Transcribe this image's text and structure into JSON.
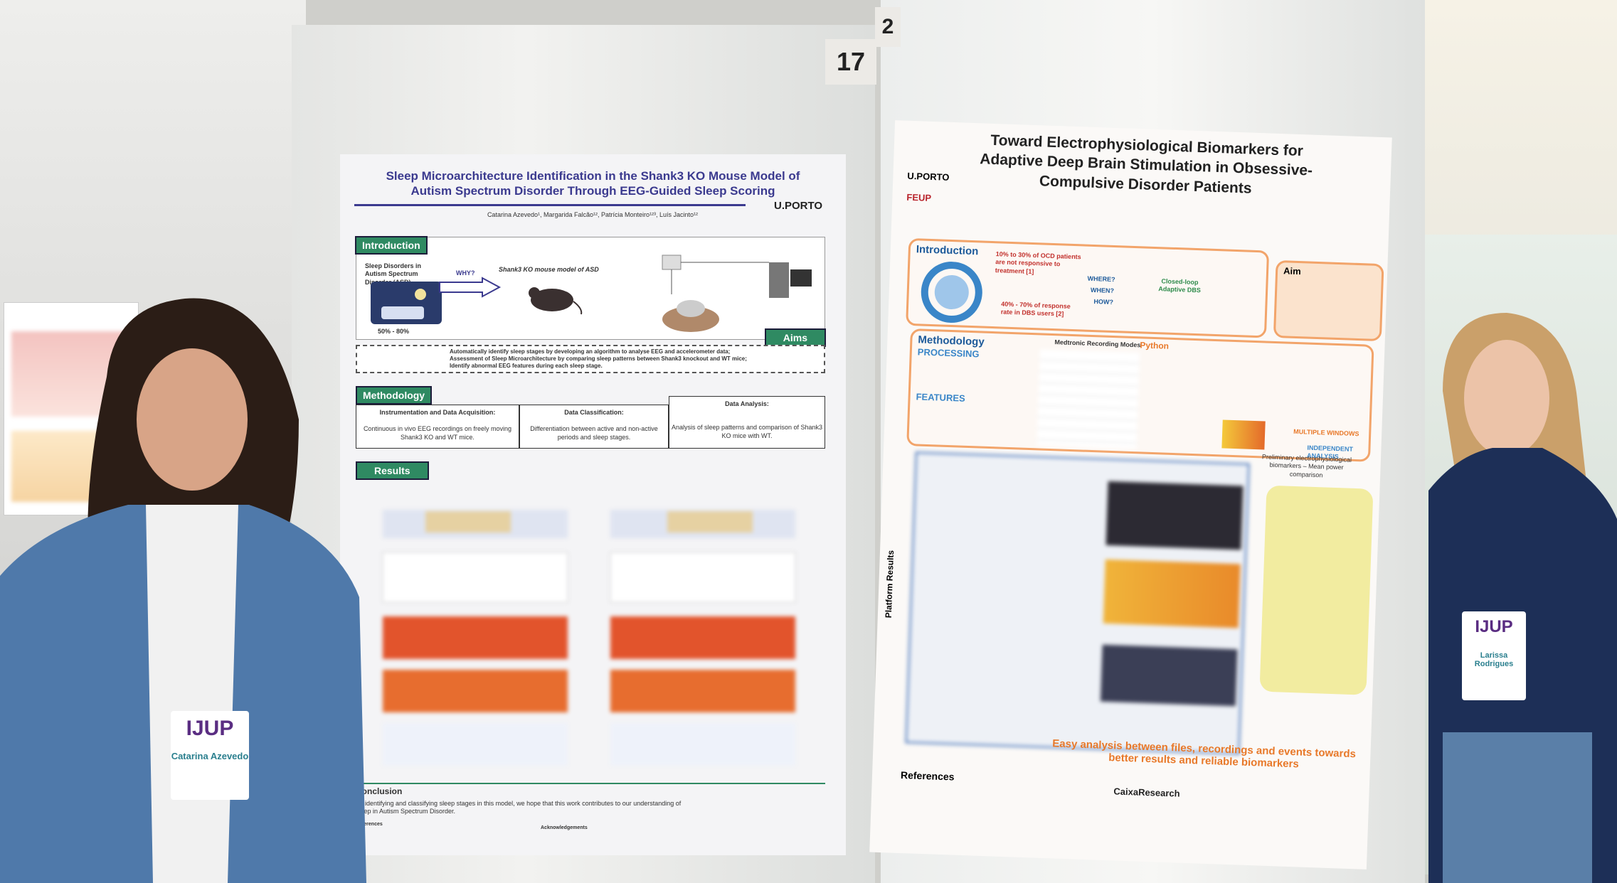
{
  "left_poster": {
    "number": "17",
    "title": "Sleep Microarchitecture Identification in the Shank3 KO Mouse Model of Autism Spectrum Disorder Through EEG-Guided Sleep Scoring",
    "authors": "Catarina Azevedo¹, Margarida Falcão¹², Patrícia Monteiro¹²³, Luís Jacinto¹²",
    "logo": "U.PORTO",
    "introduction": {
      "heading": "Introduction",
      "problem": "Sleep Disorders in Autism Spectrum Disorder (ASD)",
      "prevalence": "50% - 80%",
      "question": "WHY?",
      "model": "Shank3 KO mouse model of ASD"
    },
    "aims": {
      "heading": "Aims",
      "items": [
        "Automatically identify sleep stages by developing an algorithm to analyse EEG and accelerometer data;",
        "Assessment of Sleep Microarchitecture by comparing sleep patterns between Shank3 knockout and WT mice;",
        "Identify abnormal EEG features during each sleep stage."
      ]
    },
    "methodology": {
      "heading": "Methodology",
      "steps": [
        {
          "title": "Instrumentation and Data Acquisition:",
          "text": "Continuous in vivo EEG recordings on freely moving Shank3 KO and WT mice."
        },
        {
          "title": "Data Classification:",
          "text": "Differentiation between active and non-active periods and sleep stages."
        },
        {
          "title": "Data Analysis:",
          "text": "Analysis of sleep patterns and comparison of Shank3 KO mice with WT."
        }
      ]
    },
    "results": {
      "heading": "Results"
    },
    "conclusion": {
      "heading": "Conclusion",
      "text": "By identifying and classifying sleep stages in this model, we hope that this work contributes to our understanding of sleep in Autism Spectrum Disorder."
    },
    "references_heading": "References",
    "acknowledgements_heading": "Acknowledgements"
  },
  "right_poster": {
    "number": "2",
    "title": "Toward Electrophysiological Biomarkers for Adaptive Deep Brain Stimulation in Obsessive-Compulsive Disorder Patients",
    "logos": [
      "U.PORTO",
      "FEUP"
    ],
    "introduction": {
      "heading": "Introduction",
      "nonresponse": "10% to 30% of OCD patients are not responsive to treatment [1]",
      "response": "40% - 70% of response rate in DBS users [2]",
      "questions": [
        "WHERE?",
        "WHEN?",
        "HOW?"
      ],
      "dbs": "Closed-loop Adaptive DBS"
    },
    "aim": {
      "heading": "Aim"
    },
    "methodology": {
      "heading": "Methodology",
      "processing": "PROCESSING",
      "features": "FEATURES",
      "medtronic": "Medtronic Recording Modes",
      "python": "Python",
      "windows": "MULTIPLE WINDOWS",
      "independent": "INDEPENDENT ANALYSIS"
    },
    "platform_results": "Platform Results",
    "biomarkers": "Preliminary electrophysiological biomarkers – Mean power comparison",
    "tagline": "Easy analysis between files, recordings and events towards better results and reliable biomarkers",
    "references_heading": "References",
    "sponsor": "CaixaResearch"
  },
  "badges": [
    {
      "event": "IJUP",
      "name": "Catarina Azevedo"
    },
    {
      "event": "IJUP",
      "name": "Larissa Rodrigues"
    }
  ]
}
